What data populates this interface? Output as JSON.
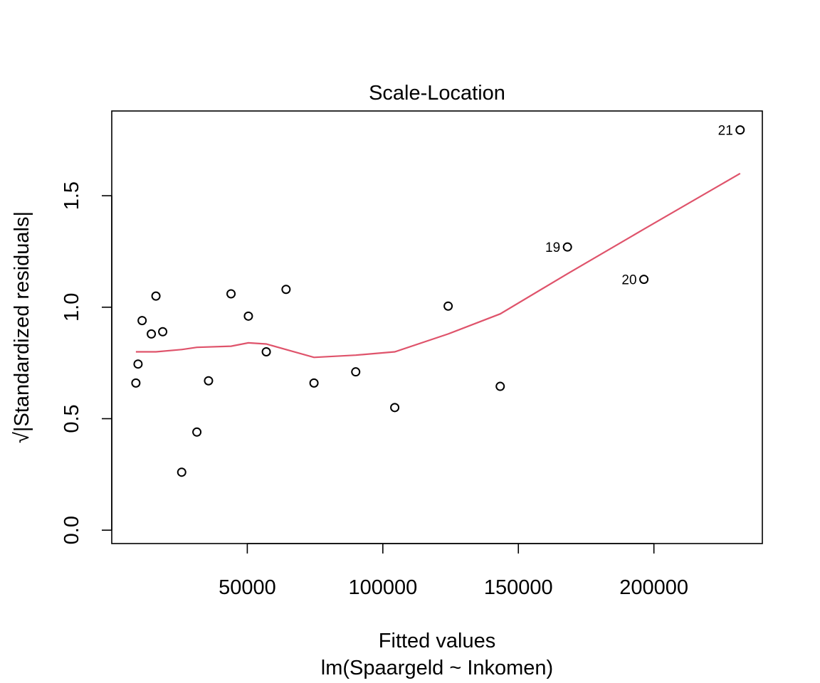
{
  "chart_data": {
    "type": "scatter",
    "title": "Scale-Location",
    "xlabel": "Fitted values",
    "xsublabel": "lm(Spaargeld ~ Inkomen)",
    "ylabel": "√|Standardized residuals|",
    "xlim": [
      0,
      240000
    ],
    "ylim": [
      -0.06,
      1.88
    ],
    "xticks": [
      50000,
      100000,
      150000,
      200000
    ],
    "yticks": [
      0.0,
      0.5,
      1.0,
      1.5
    ],
    "xtick_labels": [
      "50000",
      "100000",
      "150000",
      "200000"
    ],
    "ytick_labels": [
      "0.0",
      "0.5",
      "1.0",
      "1.5"
    ],
    "grid": false,
    "point_color": "#000000",
    "smooth_color": "#DF536B",
    "points": [
      {
        "x": 8900,
        "y": 0.66
      },
      {
        "x": 9700,
        "y": 0.745
      },
      {
        "x": 11200,
        "y": 0.94
      },
      {
        "x": 14600,
        "y": 0.88
      },
      {
        "x": 16300,
        "y": 1.05
      },
      {
        "x": 18800,
        "y": 0.89
      },
      {
        "x": 25800,
        "y": 0.26
      },
      {
        "x": 31400,
        "y": 0.44
      },
      {
        "x": 35700,
        "y": 0.67
      },
      {
        "x": 44000,
        "y": 1.06
      },
      {
        "x": 50400,
        "y": 0.96
      },
      {
        "x": 57000,
        "y": 0.8
      },
      {
        "x": 64300,
        "y": 1.08
      },
      {
        "x": 74600,
        "y": 0.66
      },
      {
        "x": 90000,
        "y": 0.71
      },
      {
        "x": 104400,
        "y": 0.55
      },
      {
        "x": 124100,
        "y": 1.005
      },
      {
        "x": 143300,
        "y": 0.645
      },
      {
        "x": 168100,
        "y": 1.27,
        "label": "19"
      },
      {
        "x": 196300,
        "y": 1.125,
        "label": "20"
      },
      {
        "x": 231800,
        "y": 1.795,
        "label": "21"
      }
    ],
    "smooth_line": {
      "x": [
        8900,
        16300,
        25800,
        31400,
        44000,
        50400,
        57000,
        64300,
        74600,
        90000,
        104400,
        124100,
        143300,
        168100,
        196300,
        231800
      ],
      "y": [
        0.8,
        0.8,
        0.81,
        0.82,
        0.825,
        0.84,
        0.835,
        0.81,
        0.775,
        0.785,
        0.8,
        0.88,
        0.97,
        1.15,
        1.35,
        1.6
      ]
    }
  }
}
